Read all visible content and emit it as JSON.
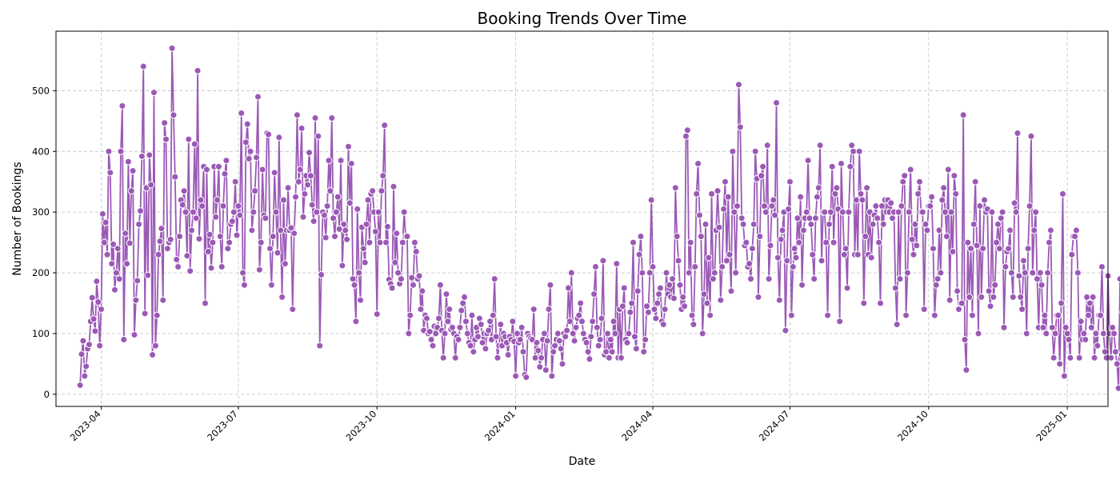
{
  "colors": {
    "series": "#9b59b6",
    "grid": "#c8c8c8",
    "marker_edge": "#ffffff"
  },
  "chart_data": {
    "type": "line",
    "title": "Booking Trends Over Time",
    "xlabel": "Date",
    "ylabel": "Number of Bookings",
    "grid": true,
    "x_range": [
      "2023-03-02",
      "2025-01-28"
    ],
    "ylim": [
      -20,
      598
    ],
    "yticks": [
      0,
      100,
      200,
      300,
      400,
      500
    ],
    "xticks": [
      "2023-04",
      "2023-07",
      "2023-10",
      "2024-01",
      "2024-04",
      "2024-07",
      "2024-10",
      "2025-01"
    ],
    "series": [
      {
        "start_date": "2023-03-18",
        "frequency": "daily",
        "values": [
          15,
          66,
          88,
          30,
          46,
          75,
          82,
          120,
          159,
          124,
          104,
          186,
          152,
          80,
          140,
          297,
          250,
          283,
          230,
          400,
          365,
          215,
          247,
          172,
          200,
          240,
          190,
          400,
          475,
          90,
          265,
          215,
          383,
          249,
          335,
          368,
          98,
          155,
          187,
          280,
          302,
          392,
          540,
          133,
          340,
          196,
          394,
          345,
          65,
          497,
          80,
          130,
          230,
          252,
          273,
          155,
          447,
          420,
          240,
          250,
          255,
          570,
          460,
          358,
          222,
          210,
          260,
          320,
          312,
          335,
          300,
          228,
          420,
          203,
          270,
          300,
          412,
          290,
          533,
          256,
          320,
          310,
          375,
          150,
          370,
          235,
          263,
          208,
          250,
          375,
          292,
          320,
          375,
          260,
          210,
          310,
          363,
          385,
          240,
          250,
          280,
          285,
          300,
          350,
          262,
          310,
          295,
          463,
          200,
          180,
          415,
          445,
          388,
          400,
          270,
          300,
          335,
          390,
          490,
          205,
          250,
          370,
          295,
          290,
          430,
          428,
          240,
          180,
          260,
          365,
          300,
          233,
          423,
          270,
          160,
          320,
          215,
          270,
          340,
          270,
          274,
          140,
          265,
          325,
          460,
          350,
          370,
          438,
          292,
          330,
          360,
          345,
          398,
          360,
          312,
          285,
          455,
          300,
          425,
          80,
          197,
          300,
          295,
          258,
          310,
          385,
          335,
          455,
          290,
          260,
          300,
          325,
          272,
          385,
          212,
          280,
          270,
          255,
          408,
          315,
          380,
          190,
          180,
          120,
          305,
          200,
          155,
          275,
          240,
          217,
          280,
          320,
          250,
          330,
          335,
          300,
          268,
          132,
          300,
          250,
          335,
          360,
          443,
          250,
          276,
          189,
          182,
          175,
          342,
          217,
          265,
          200,
          182,
          190,
          250,
          300,
          260,
          260,
          100,
          130,
          192,
          180,
          250,
          235,
          190,
          195,
          140,
          170,
          105,
          130,
          125,
          100,
          103,
          90,
          80,
          112,
          100,
          110,
          125,
          180,
          105,
          60,
          100,
          165,
          120,
          140,
          107,
          110,
          100,
          60,
          95,
          90,
          110,
          138,
          150,
          160,
          120,
          100,
          85,
          80,
          130,
          70,
          90,
          110,
          95,
          125,
          115,
          85,
          100,
          75,
          100,
          105,
          120,
          90,
          130,
          190,
          95,
          60,
          80,
          115,
          80,
          100,
          95,
          85,
          65,
          95,
          90,
          120,
          87,
          30,
          100,
          85,
          90,
          110,
          70,
          32,
          28,
          100,
          95,
          92,
          90,
          140,
          60,
          85,
          72,
          45,
          60,
          90,
          100,
          40,
          88,
          140,
          180,
          30,
          70,
          80,
          90,
          100,
          88,
          75,
          50,
          100,
          95,
          105,
          175,
          120,
          200,
          100,
          88,
          110,
          125,
          130,
          150,
          120,
          100,
          90,
          85,
          70,
          58,
          95,
          120,
          165,
          210,
          110,
          80,
          90,
          125,
          220,
          65,
          70,
          100,
          60,
          90,
          70,
          120,
          100,
          215,
          60,
          140,
          60,
          145,
          175,
          90,
          85,
          100,
          135,
          150,
          250,
          95,
          75,
          170,
          230,
          260,
          200,
          70,
          90,
          145,
          135,
          200,
          320,
          210,
          140,
          125,
          150,
          165,
          175,
          120,
          115,
          140,
          200,
          165,
          180,
          160,
          190,
          158,
          340,
          260,
          220,
          180,
          140,
          160,
          145,
          425,
          435,
          200,
          250,
          130,
          115,
          210,
          330,
          380,
          295,
          260,
          100,
          165,
          280,
          150,
          225,
          130,
          330,
          190,
          200,
          270,
          335,
          275,
          155,
          210,
          305,
          350,
          220,
          325,
          230,
          170,
          400,
          300,
          200,
          310,
          510,
          440,
          290,
          280,
          245,
          250,
          210,
          215,
          190,
          240,
          280,
          400,
          355,
          160,
          260,
          360,
          375,
          310,
          300,
          410,
          190,
          245,
          310,
          320,
          295,
          480,
          225,
          155,
          255,
          270,
          300,
          105,
          220,
          305,
          350,
          130,
          210,
          240,
          225,
          290,
          250,
          325,
          180,
          270,
          290,
          300,
          385,
          290,
          280,
          230,
          190,
          290,
          325,
          340,
          410,
          220,
          300,
          300,
          250,
          130,
          280,
          300,
          375,
          250,
          330,
          340,
          305,
          120,
          380,
          300,
          230,
          240,
          175,
          300,
          375,
          410,
          400,
          230,
          320,
          230,
          400,
          330,
          320,
          150,
          260,
          340,
          230,
          300,
          225,
          280,
          295,
          310,
          290,
          250,
          150,
          310,
          280,
          320,
          300,
          320,
          300,
          315,
          290,
          300,
          175,
          115,
          300,
          190,
          310,
          350,
          360,
          130,
          200,
          300,
          370,
          255,
          230,
          280,
          245,
          330,
          350,
          300,
          300,
          140,
          280,
          270,
          310,
          310,
          325,
          240,
          130,
          180,
          190,
          270,
          200,
          320,
          340,
          300,
          260,
          370,
          155,
          300,
          235,
          360,
          330,
          170,
          140,
          150,
          150,
          460,
          90,
          40,
          250,
          160,
          240,
          130,
          280,
          350,
          245,
          100,
          310,
          160,
          240,
          320,
          300,
          305,
          170,
          145,
          300,
          160,
          180,
          250,
          280,
          240,
          290,
          300,
          110,
          210,
          235,
          240,
          270,
          200,
          160,
          315,
          300,
          430,
          195,
          160,
          140,
          220,
          200,
          100,
          240,
          310,
          425,
          200,
          270,
          300,
          190,
          110,
          200,
          180,
          110,
          130,
          100,
          200,
          250,
          270,
          110,
          60,
          100,
          130,
          130,
          50,
          150,
          330,
          30,
          110,
          100,
          90,
          60,
          230,
          260,
          260,
          270,
          200,
          60,
          120,
          90,
          100,
          90,
          160,
          130,
          150,
          110,
          160,
          60,
          100,
          80,
          130,
          130,
          210,
          100,
          70,
          60,
          195,
          100,
          60,
          110,
          100,
          70,
          50,
          10,
          190,
          65,
          135,
          120,
          200,
          90
        ]
      }
    ]
  }
}
